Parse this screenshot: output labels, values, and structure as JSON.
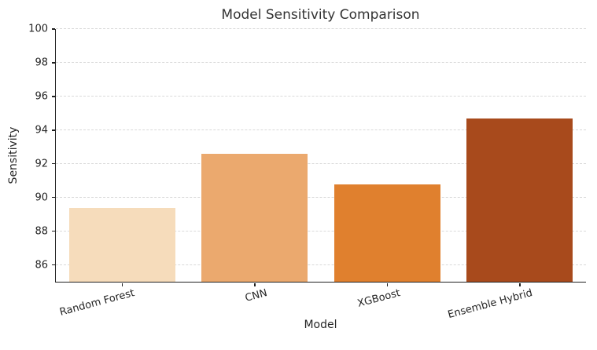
{
  "chart_data": {
    "type": "bar",
    "title": "Model Sensitivity Comparison",
    "xlabel": "Model",
    "ylabel": "Sensitivity",
    "categories": [
      "Random Forest",
      "CNN",
      "XGBoost",
      "Ensemble Hybrid"
    ],
    "values": [
      89.4,
      92.6,
      90.8,
      94.7
    ],
    "bar_colors": [
      "#f6dcbb",
      "#eba96e",
      "#e0802e",
      "#a84a1c"
    ],
    "ylim": [
      85,
      100
    ],
    "yticks": [
      86,
      88,
      90,
      92,
      94,
      96,
      98,
      100
    ],
    "grid": "horizontal-dashed",
    "gridline_color": "#d9d9d9",
    "spine_color": "#1f1f1f",
    "text_color": "#262626",
    "title_color": "#333333",
    "xtick_rotation_deg": 15,
    "bar_width_fraction": 0.8,
    "legend": "none"
  }
}
